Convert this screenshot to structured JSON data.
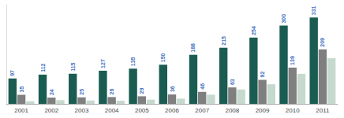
{
  "chart_data": {
    "type": "bar",
    "categories": [
      "2001",
      "2002",
      "2003",
      "2004",
      "2005",
      "2006",
      "2007",
      "2008",
      "2009",
      "2010",
      "2011"
    ],
    "series": [
      {
        "color": "#1a5c52",
        "values": [
          97,
          112,
          115,
          127,
          135,
          150,
          188,
          215,
          254,
          300,
          331
        ],
        "data_labels": true
      },
      {
        "color": "#7f7f7f",
        "values": [
          35,
          24,
          25,
          26,
          29,
          36,
          46,
          63,
          92,
          139,
          209
        ],
        "data_labels": true
      },
      {
        "color": "#c5d9ce",
        "values": [
          10,
          14,
          13,
          12,
          16,
          20,
          35,
          55,
          75,
          115,
          175
        ],
        "data_labels": false
      }
    ],
    "ylim": [
      0,
      380
    ],
    "grid": false,
    "tick_labels": "x"
  }
}
